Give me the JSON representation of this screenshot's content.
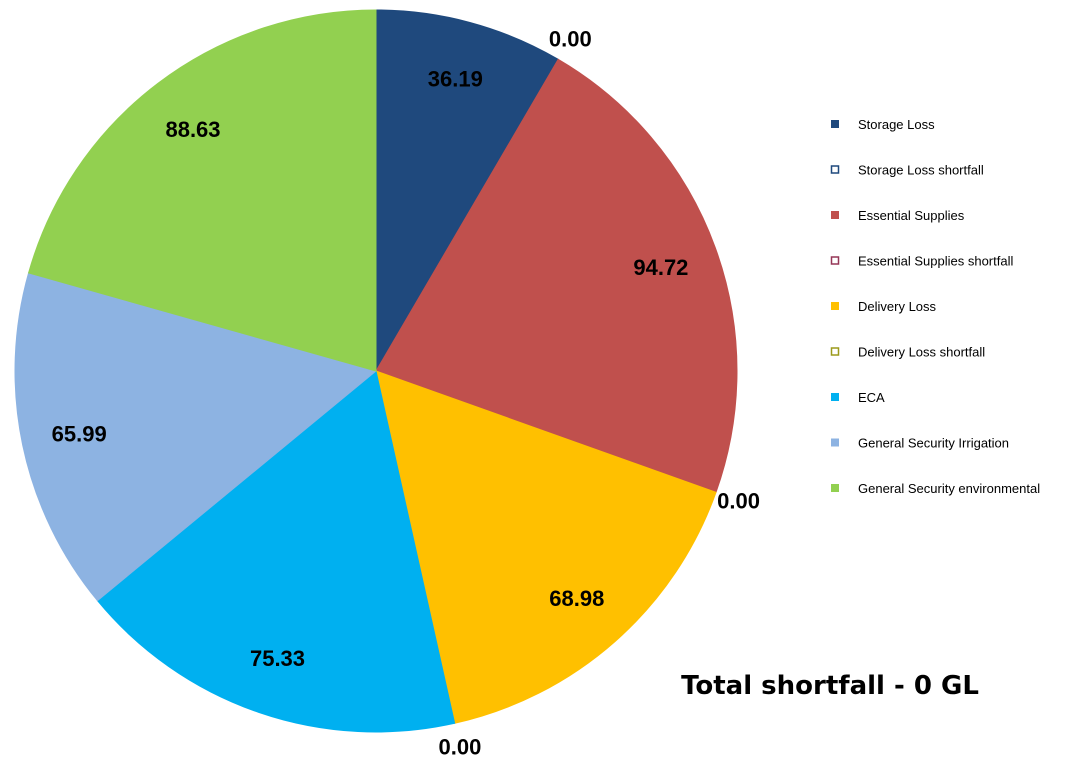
{
  "chart_data": {
    "type": "pie",
    "title": "",
    "slices": [
      {
        "name": "Storage Loss",
        "value": 36.19,
        "label": "36.19",
        "fill": "#1F497D",
        "stroke": "#1F497D"
      },
      {
        "name": "Storage Loss shortfall",
        "value": 0.0,
        "label": "0.00",
        "fill": "#FFFFFF",
        "stroke": "#1F497D"
      },
      {
        "name": "Essential Supplies",
        "value": 94.72,
        "label": "94.72",
        "fill": "#C0504D",
        "stroke": "#C0504D"
      },
      {
        "name": "Essential Supplies shortfall",
        "value": 0.0,
        "label": "0.00",
        "fill": "#FFFFFF",
        "stroke": "#953657"
      },
      {
        "name": "Delivery Loss",
        "value": 68.98,
        "label": "68.98",
        "fill": "#FFC000",
        "stroke": "#FFC000"
      },
      {
        "name": "Delivery Loss shortfall",
        "value": 0.0,
        "label": "0.00",
        "fill": "#FFFFFF",
        "stroke": "#9C9A1C"
      },
      {
        "name": "ECA",
        "value": 75.33,
        "label": "75.33",
        "fill": "#00B0F0",
        "stroke": "#00B0F0"
      },
      {
        "name": "General Security Irrigation",
        "value": 65.99,
        "label": "65.99",
        "fill": "#8DB3E2",
        "stroke": "#8DB3E2"
      },
      {
        "name": "General Security environmental",
        "value": 88.63,
        "label": "88.63",
        "fill": "#92D050",
        "stroke": "#92D050"
      }
    ],
    "legend_position": "right",
    "annotation": "Total shortfall - 0 GL"
  }
}
